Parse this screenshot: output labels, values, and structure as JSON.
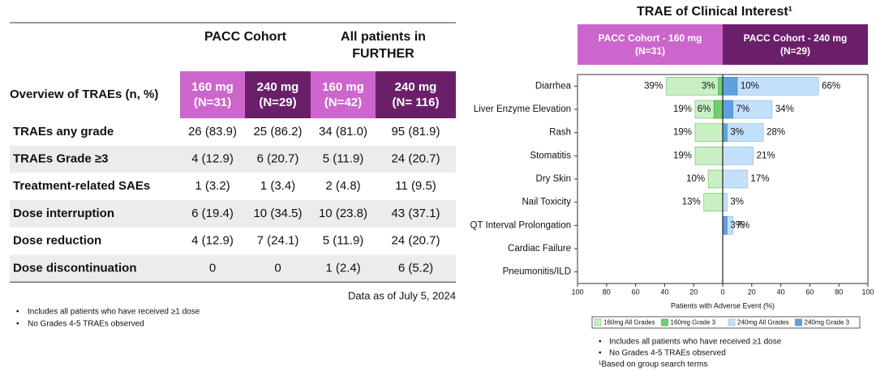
{
  "table": {
    "groups": [
      [
        "PACC Cohort"
      ],
      [
        "All patients in",
        "FURTHER"
      ]
    ],
    "header_label": "Overview of TRAEs (n, %)",
    "columns": [
      [
        "160 mg",
        "(N=31)"
      ],
      [
        "240 mg",
        "(N=29)"
      ],
      [
        "160 mg",
        "(N=42)"
      ],
      [
        "240 mg",
        "(N= 116)"
      ]
    ],
    "rows": [
      [
        "TRAEs any grade",
        "26 (83.9)",
        "25 (86.2)",
        "34 (81.0)",
        "95 (81.9)"
      ],
      [
        "TRAEs Grade ≥3",
        "4 (12.9)",
        "6 (20.7)",
        "5 (11.9)",
        "24 (20.7)"
      ],
      [
        "Treatment-related SAEs",
        "1 (3.2)",
        "1 (3.4)",
        "2 (4.8)",
        "11 (9.5)"
      ],
      [
        "Dose interruption",
        "6 (19.4)",
        "10 (34.5)",
        "10 (23.8)",
        "43 (37.1)"
      ],
      [
        "Dose reduction",
        "4 (12.9)",
        "7 (24.1)",
        "5 (11.9)",
        "24 (20.7)"
      ],
      [
        "Dose discontinuation",
        "0",
        "0",
        "1 (2.4)",
        "6 (5.2)"
      ]
    ],
    "note": "Data as of July 5, 2024",
    "footnotes": [
      "Includes all patients who have received ≥1 dose",
      "No Grades 4-5 TRAEs observed"
    ]
  },
  "chart_data": {
    "type": "butterfly",
    "title": "TRAE of Clinical Interest¹",
    "panels": [
      [
        "PACC Cohort - 160 mg",
        "(N=31)"
      ],
      [
        "PACC Cohort - 240 mg",
        "(N=29)"
      ]
    ],
    "categories": [
      "Diarrhea",
      "Liver Enzyme Elevation",
      "Rash",
      "Stomatitis",
      "Dry Skin",
      "Nail Toxicity",
      "QT Interval Prolongation",
      "Cardiac Failure",
      "Pneumonitis/ILD"
    ],
    "series": [
      {
        "name": "160mg All Grades",
        "color": "#c9efc4",
        "stroke": "#5fbf5f",
        "values": [
          -39,
          -19,
          -19,
          -19,
          -10,
          -13,
          null,
          null,
          null
        ],
        "value_labels": [
          "39%",
          "19%",
          "19%",
          "19%",
          "10%",
          "13%",
          null,
          null,
          null
        ]
      },
      {
        "name": "160mg Grade 3",
        "color": "#6fcf6f",
        "stroke": "#3f9f3f",
        "values": [
          -3,
          -6,
          null,
          null,
          null,
          null,
          null,
          null,
          null
        ],
        "value_labels": [
          "3%",
          "6%",
          null,
          null,
          null,
          null,
          null,
          null,
          null
        ]
      },
      {
        "name": "240mg All Grades",
        "color": "#c3e0fb",
        "stroke": "#7fb3e6",
        "values": [
          66,
          34,
          28,
          21,
          17,
          3,
          7,
          null,
          null
        ],
        "value_labels": [
          "66%",
          "34%",
          "28%",
          "21%",
          "17%",
          "3%",
          "7%",
          null,
          null
        ]
      },
      {
        "name": "240mg Grade 3",
        "color": "#5fa0e0",
        "stroke": "#3a7cc0",
        "values": [
          10,
          7,
          3,
          null,
          null,
          null,
          3,
          null,
          null
        ],
        "value_labels": [
          "10%",
          "7%",
          "3%",
          null,
          null,
          null,
          "3%",
          null,
          null
        ]
      }
    ],
    "xlim": [
      -100,
      100
    ],
    "xticks": [
      {
        "value": -100,
        "label": "100"
      },
      {
        "value": -80,
        "label": "80"
      },
      {
        "value": -60,
        "label": "60"
      },
      {
        "value": -40,
        "label": "40"
      },
      {
        "value": -20,
        "label": "20"
      },
      0,
      20,
      40,
      60,
      80,
      100
    ],
    "xlabel": "Patients with Adverse Event (%)",
    "legend": "bottom",
    "footnotes": [
      "Includes all patients who have received ≥1 dose",
      "No Grades 4-5 TRAEs observed",
      "¹Based on group search terms"
    ]
  }
}
